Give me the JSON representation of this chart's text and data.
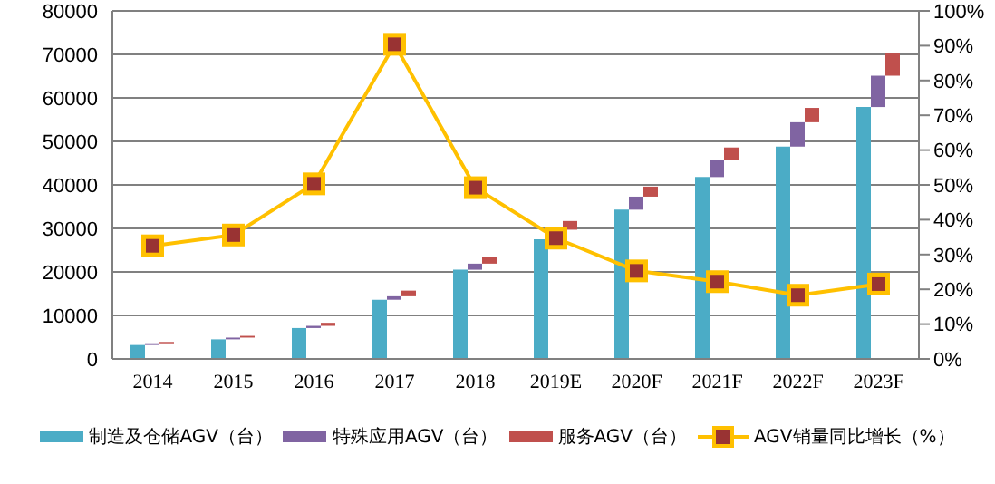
{
  "chart_data": {
    "type": "bar",
    "categories": [
      "2014",
      "2015",
      "2016",
      "2017",
      "2018",
      "2019E",
      "2020F",
      "2021F",
      "2022F",
      "2023F"
    ],
    "series": [
      {
        "name": "制造及仓储AGV（台）",
        "color": "#4bacc6",
        "values": [
          3200,
          4500,
          7100,
          13600,
          20500,
          27500,
          34300,
          41800,
          48800,
          57900
        ]
      },
      {
        "name": "特殊应用AGV（台）",
        "color": "#8064a2",
        "base": [
          3200,
          4500,
          7100,
          13600,
          20500,
          null,
          34300,
          41800,
          48800,
          57900
        ],
        "values": [
          400,
          400,
          500,
          800,
          1400,
          null,
          3000,
          3900,
          5600,
          7200
        ]
      },
      {
        "name": "服务AGV（台）",
        "color": "#c0504d",
        "base": [
          3600,
          4900,
          7600,
          14400,
          21900,
          29700,
          37300,
          45700,
          54400,
          65100
        ],
        "values": [
          300,
          400,
          700,
          1300,
          1600,
          2000,
          2300,
          2900,
          3300,
          5100
        ]
      },
      {
        "name": "AGV销量同比增长（%）",
        "type": "line",
        "axis": "y2",
        "color": "#ffc000",
        "values": [
          32.5,
          35.6,
          50.3,
          90.4,
          49.2,
          34.7,
          25.3,
          22.2,
          18.3,
          21.5
        ]
      }
    ],
    "ylim": [
      0,
      80000
    ],
    "yticks": [
      0,
      10000,
      20000,
      30000,
      40000,
      50000,
      60000,
      70000,
      80000
    ],
    "y2lim": [
      0,
      100
    ],
    "y2ticks": [
      {
        "value": 0,
        "label": "0%"
      },
      {
        "value": 10,
        "label": "10%"
      },
      {
        "value": 20,
        "label": "20%"
      },
      {
        "value": 30,
        "label": "30%"
      },
      {
        "value": 40,
        "label": "40%"
      },
      {
        "value": 50,
        "label": "50%"
      },
      {
        "value": 60,
        "label": "60%"
      },
      {
        "value": 70,
        "label": "70%"
      },
      {
        "value": 80,
        "label": "80%"
      },
      {
        "value": 90,
        "label": "90%"
      },
      {
        "value": 100,
        "label": "100%"
      }
    ],
    "grid": "y",
    "legend": "bottom",
    "marker": "square",
    "line_style": "solid"
  }
}
